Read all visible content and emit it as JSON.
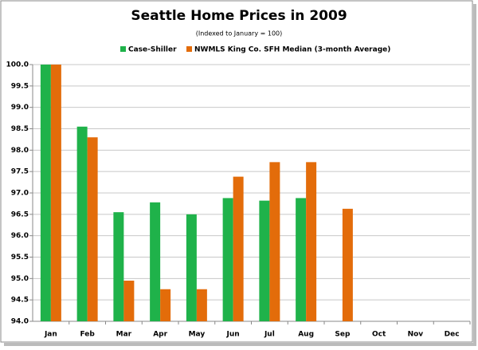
{
  "chart_data": {
    "type": "bar",
    "title": "Seattle Home Prices in 2009",
    "subtitle": "(Indexed to January = 100)",
    "categories": [
      "Jan",
      "Feb",
      "Mar",
      "Apr",
      "May",
      "Jun",
      "Jul",
      "Aug",
      "Sep",
      "Oct",
      "Nov",
      "Dec"
    ],
    "series": [
      {
        "name": "Case-Shiller",
        "color": "#1fb24a",
        "values": [
          100,
          98.55,
          96.55,
          96.78,
          96.5,
          96.88,
          96.82,
          96.88,
          null,
          null,
          null,
          null
        ]
      },
      {
        "name": "NWMLS King Co. SFH Median (3-month Average)",
        "color": "#e36c0a",
        "values": [
          100,
          98.3,
          94.95,
          94.75,
          94.75,
          97.38,
          97.72,
          97.72,
          96.63,
          null,
          null,
          null
        ]
      }
    ],
    "ylim": [
      94,
      100
    ],
    "yticks": [
      {
        "value": 94,
        "label": "94.0"
      },
      {
        "value": 94.5,
        "label": "94.5"
      },
      {
        "value": 95,
        "label": "95.0"
      },
      {
        "value": 95.5,
        "label": "95.5"
      },
      {
        "value": 96,
        "label": "96.0"
      },
      {
        "value": 96.5,
        "label": "96.5"
      },
      {
        "value": 97,
        "label": "97.0"
      },
      {
        "value": 97.5,
        "label": "97.5"
      },
      {
        "value": 98,
        "label": "98.0"
      },
      {
        "value": 98.5,
        "label": "98.5"
      },
      {
        "value": 99,
        "label": "99.0"
      },
      {
        "value": 99.5,
        "label": "99.5"
      },
      {
        "value": 100,
        "label": "100.0"
      }
    ],
    "grid": true
  }
}
